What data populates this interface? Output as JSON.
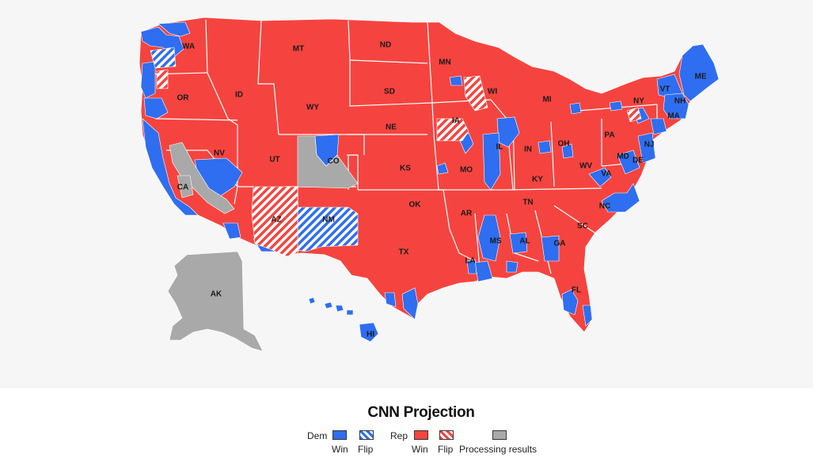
{
  "legend": {
    "title": "CNN Projection",
    "dem_label": "Dem",
    "rep_label": "Rep",
    "win_label": "Win",
    "flip_label": "Flip",
    "processing_label": "Processing results"
  },
  "colors": {
    "dem": "#2f6ef0",
    "rep": "#f5443f",
    "processing": "#a9a9a9",
    "background": "#f6f6f6"
  },
  "states": [
    {
      "abbr": "WA",
      "status": "rep-win"
    },
    {
      "abbr": "OR",
      "status": "rep-win"
    },
    {
      "abbr": "CA",
      "status": "processing"
    },
    {
      "abbr": "NV",
      "status": "rep-win"
    },
    {
      "abbr": "ID",
      "status": "rep-win"
    },
    {
      "abbr": "MT",
      "status": "rep-win"
    },
    {
      "abbr": "WY",
      "status": "rep-win"
    },
    {
      "abbr": "UT",
      "status": "rep-win"
    },
    {
      "abbr": "CO",
      "status": "rep-win"
    },
    {
      "abbr": "AZ",
      "status": "rep-flip"
    },
    {
      "abbr": "NM",
      "status": "dem-flip"
    },
    {
      "abbr": "ND",
      "status": "rep-win"
    },
    {
      "abbr": "SD",
      "status": "rep-win"
    },
    {
      "abbr": "NE",
      "status": "rep-win"
    },
    {
      "abbr": "KS",
      "status": "rep-win"
    },
    {
      "abbr": "OK",
      "status": "rep-win"
    },
    {
      "abbr": "TX",
      "status": "rep-win"
    },
    {
      "abbr": "MN",
      "status": "rep-win"
    },
    {
      "abbr": "IA",
      "status": "rep-flip"
    },
    {
      "abbr": "MO",
      "status": "rep-win"
    },
    {
      "abbr": "AR",
      "status": "rep-win"
    },
    {
      "abbr": "LA",
      "status": "rep-win"
    },
    {
      "abbr": "WI",
      "status": "rep-flip"
    },
    {
      "abbr": "IL",
      "status": "rep-win"
    },
    {
      "abbr": "MI",
      "status": "rep-win"
    },
    {
      "abbr": "IN",
      "status": "rep-win"
    },
    {
      "abbr": "OH",
      "status": "rep-win"
    },
    {
      "abbr": "KY",
      "status": "rep-win"
    },
    {
      "abbr": "TN",
      "status": "rep-win"
    },
    {
      "abbr": "MS",
      "status": "dem-win"
    },
    {
      "abbr": "AL",
      "status": "rep-win"
    },
    {
      "abbr": "GA",
      "status": "rep-win"
    },
    {
      "abbr": "FL",
      "status": "rep-win"
    },
    {
      "abbr": "SC",
      "status": "rep-win"
    },
    {
      "abbr": "NC",
      "status": "rep-win"
    },
    {
      "abbr": "VA",
      "status": "rep-win"
    },
    {
      "abbr": "WV",
      "status": "rep-win"
    },
    {
      "abbr": "PA",
      "status": "rep-win"
    },
    {
      "abbr": "NY",
      "status": "rep-win"
    },
    {
      "abbr": "MD",
      "status": "dem-win"
    },
    {
      "abbr": "DE",
      "status": "dem-win"
    },
    {
      "abbr": "NJ",
      "status": "dem-win"
    },
    {
      "abbr": "VT",
      "status": "dem-win"
    },
    {
      "abbr": "NH",
      "status": "dem-win"
    },
    {
      "abbr": "ME",
      "status": "dem-win"
    },
    {
      "abbr": "MA",
      "status": "dem-win"
    },
    {
      "abbr": "AK",
      "status": "processing"
    },
    {
      "abbr": "HI",
      "status": "dem-win"
    }
  ]
}
